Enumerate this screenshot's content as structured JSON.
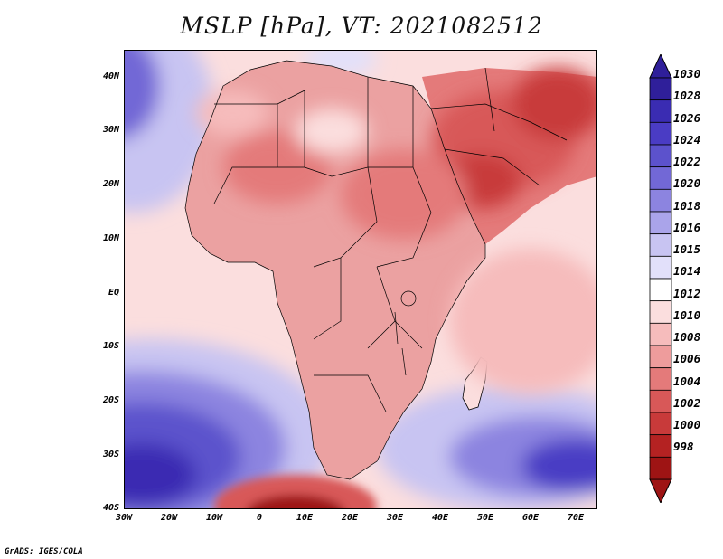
{
  "title": "MSLP [hPa], VT: 2021082512",
  "footer": "GrADS: IGES/COLA",
  "lat_labels": [
    "40N",
    "30N",
    "20N",
    "10N",
    "EQ",
    "10S",
    "20S",
    "30S",
    "40S"
  ],
  "lon_labels": [
    "30W",
    "20W",
    "10W",
    "0",
    "10E",
    "20E",
    "30E",
    "40E",
    "50E",
    "60E",
    "70E"
  ],
  "colorbar_labels": [
    "1030",
    "1028",
    "1026",
    "1024",
    "1022",
    "1020",
    "1018",
    "1016",
    "1015",
    "1014",
    "1012",
    "1010",
    "1008",
    "1006",
    "1004",
    "1002",
    "1000",
    "998"
  ],
  "colorbar_colors": [
    "#2f1f9a",
    "#3a2cb2",
    "#4a3cc4",
    "#5c52cc",
    "#7268d6",
    "#8c84e0",
    "#aaa4ea",
    "#c8c4f2",
    "#e2e0fa",
    "#ffffff",
    "#fbdede",
    "#f6bcbc",
    "#ee9c9c",
    "#e47a7a",
    "#d85858",
    "#c83a3a",
    "#b42222",
    "#9e1414"
  ],
  "colors": {
    "ocean_base": "#fbdede",
    "land_base": "#eba1a1"
  }
}
